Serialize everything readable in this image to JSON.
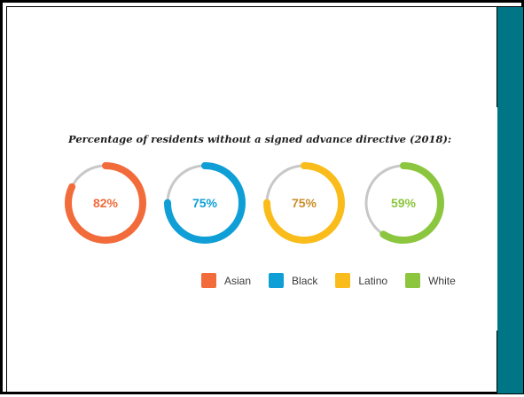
{
  "chart_data": {
    "type": "donut",
    "title": "Percentage of residents without a signed advance directive (2018):",
    "unit": "%",
    "series": [
      {
        "name": "Asian",
        "value": 82,
        "label": "82%",
        "color": "#f26b3a"
      },
      {
        "name": "Black",
        "value": 75,
        "label": "75%",
        "color": "#0f9fd6"
      },
      {
        "name": "Latino",
        "value": 75,
        "label": "75%",
        "color": "#f9bc1a"
      },
      {
        "name": "White",
        "value": 59,
        "label": "59%",
        "color": "#8cc63f"
      }
    ],
    "track_color": "#c8c8c8",
    "label_colors": [
      "#f26b3a",
      "#0f9fd6",
      "#c98e2b",
      "#8cc63f"
    ],
    "legend_position": "bottom-right"
  },
  "theme": {
    "accent_bar_color": "#007585"
  }
}
